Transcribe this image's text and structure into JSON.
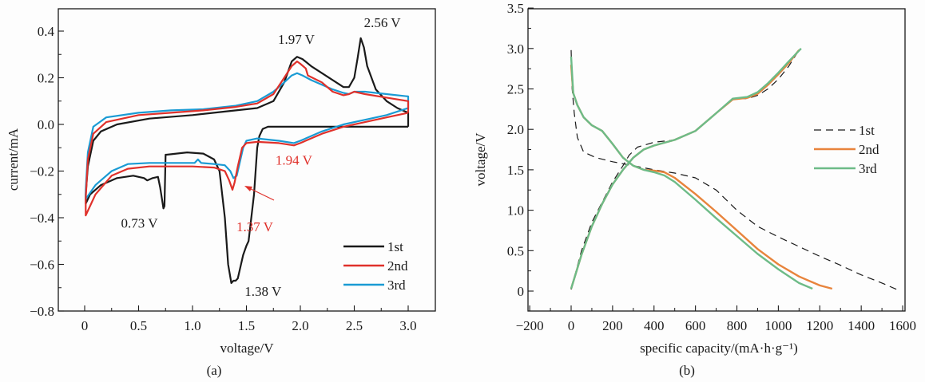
{
  "chart_data": [
    {
      "id": "a",
      "type": "line",
      "panel_label": "(a)",
      "title": "",
      "xlabel": "voltage/V",
      "ylabel": "current/mA",
      "xlim": [
        -0.25,
        3.25
      ],
      "ylim": [
        -0.8,
        0.5
      ],
      "xticks": [
        0,
        0.5,
        1.0,
        1.5,
        2.0,
        2.5,
        3.0
      ],
      "xtick_labels": [
        "0",
        "0.5",
        "1.0",
        "1.5",
        "2.0",
        "2.5",
        "3.0"
      ],
      "yticks": [
        -0.8,
        -0.6,
        -0.4,
        -0.2,
        0.0,
        0.2,
        0.4
      ],
      "ytick_labels": [
        "−0.8",
        "−0.6",
        "−0.4",
        "−0.2",
        "0.0",
        "0.2",
        "0.4"
      ],
      "grid": false,
      "legend_position": "bottom-right",
      "series": [
        {
          "name": "1st",
          "color": "#1a1a1a",
          "dash": false,
          "x": [
            3.0,
            2.8,
            2.6,
            2.4,
            2.2,
            2.0,
            1.8,
            1.7,
            1.65,
            1.62,
            1.6,
            1.57,
            1.52,
            1.5,
            1.47,
            1.42,
            1.4,
            1.38,
            1.36,
            1.33,
            1.3,
            1.25,
            1.2,
            1.1,
            0.95,
            0.85,
            0.76,
            0.75,
            0.74,
            0.73,
            0.7,
            0.68,
            0.63,
            0.58,
            0.55,
            0.45,
            0.3,
            0.15,
            0.05,
            0.01,
            0.01,
            0.03,
            0.08,
            0.15,
            0.3,
            0.6,
            1.0,
            1.3,
            1.6,
            1.75,
            1.85,
            1.92,
            1.97,
            2.02,
            2.1,
            2.2,
            2.3,
            2.4,
            2.45,
            2.5,
            2.53,
            2.56,
            2.59,
            2.62,
            2.7,
            2.8,
            2.9,
            3.0,
            3.0
          ],
          "y": [
            -0.01,
            -0.01,
            -0.01,
            -0.01,
            -0.01,
            -0.01,
            -0.01,
            -0.01,
            -0.02,
            -0.05,
            -0.1,
            -0.3,
            -0.5,
            -0.52,
            -0.56,
            -0.66,
            -0.67,
            -0.67,
            -0.68,
            -0.6,
            -0.4,
            -0.2,
            -0.15,
            -0.125,
            -0.12,
            -0.125,
            -0.13,
            -0.13,
            -0.35,
            -0.36,
            -0.27,
            -0.225,
            -0.23,
            -0.24,
            -0.23,
            -0.22,
            -0.23,
            -0.26,
            -0.3,
            -0.34,
            -0.3,
            -0.18,
            -0.07,
            -0.03,
            0.0,
            0.025,
            0.04,
            0.055,
            0.07,
            0.1,
            0.18,
            0.27,
            0.29,
            0.28,
            0.25,
            0.22,
            0.19,
            0.16,
            0.16,
            0.2,
            0.28,
            0.37,
            0.33,
            0.25,
            0.15,
            0.1,
            0.07,
            0.05,
            -0.01
          ]
        },
        {
          "name": "2nd",
          "color": "#e0312b",
          "dash": false,
          "x": [
            3.0,
            2.8,
            2.6,
            2.4,
            2.2,
            2.0,
            1.94,
            1.8,
            1.6,
            1.5,
            1.46,
            1.42,
            1.39,
            1.37,
            1.34,
            1.3,
            1.2,
            1.0,
            0.8,
            0.6,
            0.4,
            0.25,
            0.1,
            0.01,
            0.01,
            0.03,
            0.08,
            0.2,
            0.5,
            0.8,
            1.1,
            1.4,
            1.6,
            1.75,
            1.85,
            1.92,
            1.97,
            2.0,
            2.05,
            2.07,
            2.2,
            2.3,
            2.4,
            2.45,
            2.5,
            2.6,
            2.8,
            3.0,
            3.0
          ],
          "y": [
            0.05,
            0.03,
            0.01,
            -0.01,
            -0.04,
            -0.08,
            -0.09,
            -0.08,
            -0.075,
            -0.08,
            -0.1,
            -0.18,
            -0.25,
            -0.28,
            -0.24,
            -0.2,
            -0.185,
            -0.18,
            -0.18,
            -0.18,
            -0.19,
            -0.22,
            -0.3,
            -0.39,
            -0.32,
            -0.15,
            -0.04,
            0.01,
            0.04,
            0.05,
            0.06,
            0.075,
            0.09,
            0.13,
            0.2,
            0.25,
            0.27,
            0.26,
            0.24,
            0.21,
            0.18,
            0.14,
            0.125,
            0.13,
            0.14,
            0.13,
            0.115,
            0.1,
            0.05
          ]
        },
        {
          "name": "3rd",
          "color": "#1a9bd4",
          "dash": false,
          "x": [
            3.0,
            2.8,
            2.6,
            2.4,
            2.2,
            2.0,
            1.94,
            1.8,
            1.6,
            1.5,
            1.47,
            1.44,
            1.41,
            1.38,
            1.35,
            1.3,
            1.2,
            1.08,
            1.05,
            1.02,
            0.9,
            0.6,
            0.4,
            0.25,
            0.1,
            0.01,
            0.01,
            0.03,
            0.08,
            0.2,
            0.5,
            0.8,
            1.1,
            1.4,
            1.6,
            1.75,
            1.85,
            1.92,
            1.97,
            2.02,
            2.1,
            2.2,
            2.3,
            2.4,
            2.45,
            2.5,
            2.6,
            2.8,
            3.0,
            3.0
          ],
          "y": [
            0.07,
            0.04,
            0.02,
            0.0,
            -0.03,
            -0.07,
            -0.08,
            -0.07,
            -0.06,
            -0.07,
            -0.1,
            -0.16,
            -0.22,
            -0.23,
            -0.2,
            -0.175,
            -0.17,
            -0.165,
            -0.15,
            -0.165,
            -0.165,
            -0.165,
            -0.17,
            -0.2,
            -0.26,
            -0.32,
            -0.28,
            -0.12,
            -0.01,
            0.03,
            0.05,
            0.06,
            0.065,
            0.08,
            0.1,
            0.14,
            0.18,
            0.21,
            0.22,
            0.21,
            0.19,
            0.17,
            0.15,
            0.135,
            0.13,
            0.14,
            0.14,
            0.13,
            0.12,
            0.07
          ]
        }
      ],
      "annotations": [
        {
          "text": "1.97 V",
          "x": 1.97,
          "y": 0.29,
          "color": "#1a1a1a"
        },
        {
          "text": "2.56 V",
          "x": 2.56,
          "y": 0.37,
          "color": "#1a1a1a"
        },
        {
          "text": "1.94 V",
          "x": 1.94,
          "y": -0.09,
          "color": "#e0312b"
        },
        {
          "text": "1.37 V",
          "x": 1.37,
          "y": -0.28,
          "color": "#e0312b"
        },
        {
          "text": "0.73 V",
          "x": 0.73,
          "y": -0.36,
          "color": "#1a1a1a"
        },
        {
          "text": "1.38 V",
          "x": 1.38,
          "y": -0.68,
          "color": "#1a1a1a"
        }
      ]
    },
    {
      "id": "b",
      "type": "line",
      "panel_label": "(b)",
      "title": "",
      "xlabel": "specific capacity/(mA·h·g⁻¹)",
      "ylabel": "voltage/V",
      "xlim": [
        -200,
        1600
      ],
      "ylim": [
        -0.25,
        3.5
      ],
      "xticks": [
        -200,
        0,
        200,
        400,
        600,
        800,
        1000,
        1200,
        1400,
        1600
      ],
      "xtick_labels": [
        "−200",
        "0",
        "200",
        "400",
        "600",
        "800",
        "1000",
        "1200",
        "1400",
        "1600"
      ],
      "yticks": [
        0,
        0.5,
        1.0,
        1.5,
        2.0,
        2.5,
        3.0,
        3.5
      ],
      "ytick_labels": [
        "0",
        "0.5",
        "1.0",
        "1.5",
        "2.0",
        "2.5",
        "3.0",
        "3.5"
      ],
      "grid": false,
      "legend_position": "right",
      "series": [
        {
          "name": "1st",
          "color": "#1a1a1a",
          "dash": true,
          "discharge": {
            "x": [
              0,
              5,
              15,
              30,
              60,
              120,
              200,
              300,
              400,
              500,
              600,
              700,
              800,
              900,
              1000,
              1100,
              1200,
              1300,
              1400,
              1500,
              1590
            ],
            "y": [
              2.98,
              2.5,
              2.2,
              1.9,
              1.72,
              1.65,
              1.6,
              1.55,
              1.5,
              1.46,
              1.4,
              1.25,
              1.0,
              0.8,
              0.67,
              0.55,
              0.43,
              0.32,
              0.2,
              0.1,
              0.0
            ]
          },
          "charge": {
            "x": [
              0,
              50,
              100,
              150,
              200,
              250,
              280,
              320,
              400,
              500,
              600,
              700,
              780,
              850,
              900,
              950,
              1000,
              1050,
              1100
            ],
            "y": [
              0.02,
              0.5,
              0.85,
              1.1,
              1.35,
              1.55,
              1.68,
              1.78,
              1.84,
              1.87,
              1.98,
              2.2,
              2.38,
              2.38,
              2.42,
              2.5,
              2.62,
              2.78,
              2.98
            ]
          }
        },
        {
          "name": "2nd",
          "color": "#e8843c",
          "dash": false,
          "discharge": {
            "x": [
              0,
              10,
              30,
              60,
              100,
              150,
              200,
              250,
              300,
              350,
              400,
              450,
              500,
              600,
              700,
              800,
              900,
              1000,
              1100,
              1200,
              1260
            ],
            "y": [
              2.8,
              2.45,
              2.3,
              2.15,
              2.05,
              1.98,
              1.82,
              1.65,
              1.55,
              1.5,
              1.49,
              1.47,
              1.4,
              1.2,
              0.98,
              0.75,
              0.52,
              0.33,
              0.18,
              0.07,
              0.03
            ]
          },
          "charge": {
            "x": [
              0,
              50,
              100,
              150,
              200,
              250,
              300,
              350,
              400,
              500,
              600,
              700,
              780,
              850,
              900,
              950,
              1000,
              1050,
              1100
            ],
            "y": [
              0.03,
              0.45,
              0.8,
              1.08,
              1.32,
              1.5,
              1.65,
              1.75,
              1.8,
              1.87,
              1.98,
              2.2,
              2.37,
              2.39,
              2.44,
              2.55,
              2.68,
              2.82,
              2.98
            ]
          }
        },
        {
          "name": "3rd",
          "color": "#6dbb87",
          "dash": false,
          "discharge": {
            "x": [
              0,
              10,
              30,
              60,
              100,
              150,
              200,
              250,
              300,
              350,
              400,
              450,
              500,
              600,
              700,
              800,
              900,
              1000,
              1100,
              1165
            ],
            "y": [
              2.9,
              2.45,
              2.3,
              2.15,
              2.05,
              1.98,
              1.82,
              1.65,
              1.55,
              1.5,
              1.47,
              1.43,
              1.35,
              1.13,
              0.9,
              0.68,
              0.46,
              0.27,
              0.1,
              0.03
            ]
          },
          "charge": {
            "x": [
              0,
              50,
              100,
              150,
              200,
              250,
              300,
              350,
              400,
              500,
              600,
              700,
              780,
              850,
              900,
              950,
              1000,
              1050,
              1110
            ],
            "y": [
              0.03,
              0.45,
              0.8,
              1.08,
              1.32,
              1.5,
              1.65,
              1.75,
              1.8,
              1.87,
              1.98,
              2.2,
              2.38,
              2.4,
              2.46,
              2.57,
              2.7,
              2.84,
              3.0
            ]
          }
        }
      ]
    }
  ]
}
